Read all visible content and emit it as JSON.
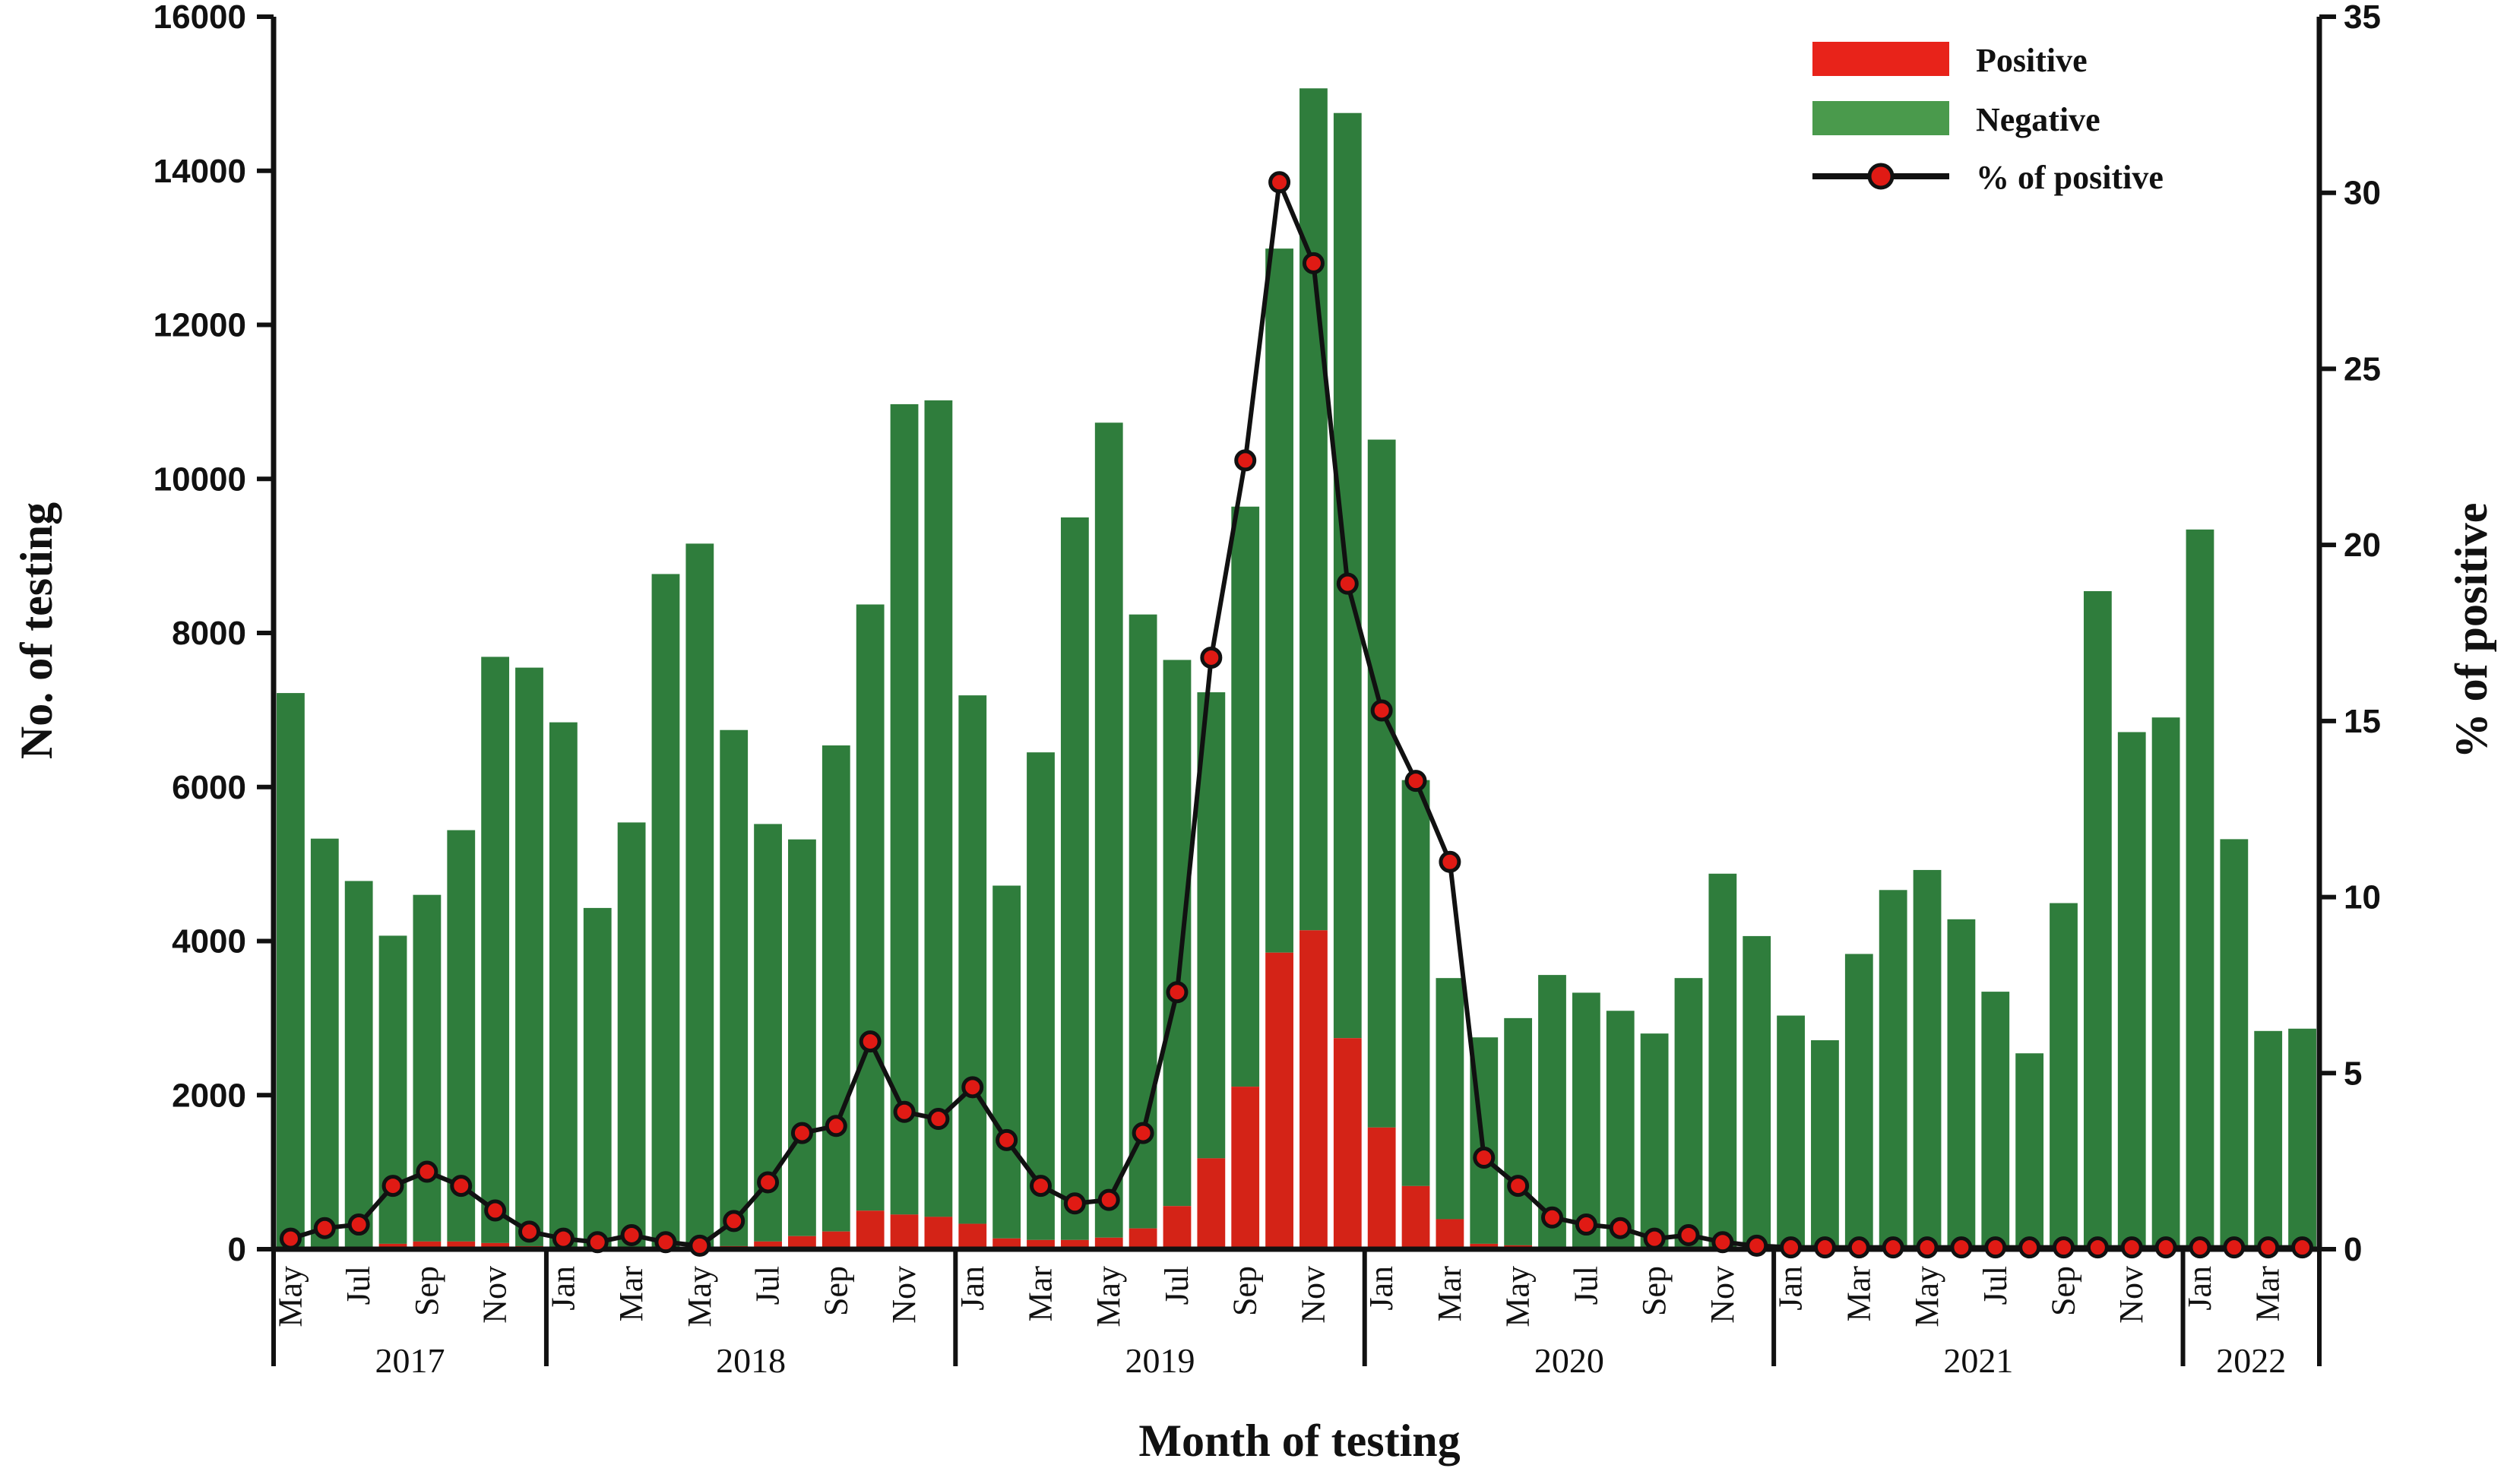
{
  "chart_data": {
    "type": "bar",
    "stacked": true,
    "xlabel": "Month of testing",
    "ylabel": "No. of testing",
    "y2label": "% of positive",
    "ylim": [
      0,
      16000
    ],
    "y2lim": [
      0,
      35
    ],
    "yticks": [
      0,
      2000,
      4000,
      6000,
      8000,
      10000,
      12000,
      14000,
      16000
    ],
    "y2ticks": [
      0,
      5,
      10,
      15,
      20,
      25,
      30,
      35
    ],
    "legend_position": "top-right",
    "categories": [
      "May 2017",
      "Jun 2017",
      "Jul 2017",
      "Aug 2017",
      "Sep 2017",
      "Oct 2017",
      "Nov 2017",
      "Dec 2017",
      "Jan 2018",
      "Feb 2018",
      "Mar 2018",
      "Apr 2018",
      "May 2018",
      "Jun 2018",
      "Jul 2018",
      "Aug 2018",
      "Sep 2018",
      "Oct 2018",
      "Nov 2018",
      "Dec 2018",
      "Jan 2019",
      "Feb 2019",
      "Mar 2019",
      "Apr 2019",
      "May 2019",
      "Jun 2019",
      "Jul 2019",
      "Aug 2019",
      "Sep 2019",
      "Oct 2019",
      "Nov 2019",
      "Dec 2019",
      "Jan 2020",
      "Feb 2020",
      "Mar 2020",
      "Apr 2020",
      "May 2020",
      "Jun 2020",
      "Jul 2020",
      "Aug 2020",
      "Sep 2020",
      "Oct 2020",
      "Nov 2020",
      "Dec 2020",
      "Jan 2021",
      "Feb 2021",
      "Mar 2021",
      "Apr 2021",
      "May 2021",
      "Jun 2021",
      "Jul 2021",
      "Aug 2021",
      "Sep 2021",
      "Oct 2021",
      "Nov 2021",
      "Dec 2021",
      "Jan 2022",
      "Feb 2022",
      "Mar 2022",
      "Apr 2022"
    ],
    "tick_labels": [
      "May",
      "",
      "Jul",
      "",
      "Sep",
      "",
      "Nov",
      "",
      "Jan",
      "",
      "Mar",
      "",
      "May",
      "",
      "Jul",
      "",
      "Sep",
      "",
      "Nov",
      "",
      "Jan",
      "",
      "Mar",
      "",
      "May",
      "",
      "Jul",
      "",
      "Sep",
      "",
      "Nov",
      "",
      "Jan",
      "",
      "Mar",
      "",
      "May",
      "",
      "Jul",
      "",
      "Sep",
      "",
      "Nov",
      "",
      "Jan",
      "",
      "Mar",
      "",
      "May",
      "",
      "Jul",
      "",
      "Sep",
      "",
      "Nov",
      "",
      "Jan",
      "",
      "Mar",
      ""
    ],
    "year_groups": [
      {
        "label": "2017",
        "start": 0,
        "end": 7
      },
      {
        "label": "2018",
        "start": 8,
        "end": 19
      },
      {
        "label": "2019",
        "start": 20,
        "end": 31
      },
      {
        "label": "2020",
        "start": 32,
        "end": 43
      },
      {
        "label": "2021",
        "start": 44,
        "end": 55
      },
      {
        "label": "2022",
        "start": 56,
        "end": 59
      }
    ],
    "series": [
      {
        "name": "Positive",
        "color": "#d42317",
        "values": [
          20,
          30,
          30,
          70,
          100,
          100,
          80,
          40,
          20,
          10,
          20,
          15,
          10,
          40,
          100,
          170,
          230,
          500,
          450,
          420,
          330,
          140,
          120,
          120,
          150,
          270,
          560,
          1180,
          2110,
          3850,
          4140,
          2740,
          1580,
          820,
          390,
          70,
          50,
          30,
          20,
          15,
          10,
          10,
          5,
          5,
          3,
          3,
          3,
          3,
          3,
          3,
          3,
          3,
          3,
          3,
          3,
          3,
          3,
          3,
          3,
          3
        ]
      },
      {
        "name": "Negative",
        "color": "#2f7d3c",
        "values": [
          7200,
          5300,
          4750,
          4000,
          4500,
          5340,
          7610,
          7510,
          6820,
          4420,
          5520,
          8750,
          9150,
          6700,
          5420,
          5150,
          6310,
          7870,
          10520,
          10600,
          6860,
          4580,
          6330,
          9380,
          10580,
          7970,
          7090,
          6050,
          7530,
          9140,
          10930,
          12010,
          8930,
          5270,
          3130,
          2680,
          2950,
          3530,
          3310,
          3080,
          2790,
          3510,
          4870,
          4060,
          3030,
          2710,
          3830,
          4660,
          4920,
          4280,
          3340,
          2540,
          4490,
          8540,
          6710,
          6900,
          9340,
          5320,
          2830,
          2860
        ]
      },
      {
        "name": "% of positive",
        "color": "#111111",
        "marker_color": "#e01a14",
        "values": [
          0.3,
          0.6,
          0.7,
          1.8,
          2.2,
          1.8,
          1.1,
          0.5,
          0.3,
          0.2,
          0.4,
          0.2,
          0.1,
          0.8,
          1.9,
          3.3,
          3.5,
          5.9,
          3.9,
          3.7,
          4.6,
          3.1,
          1.8,
          1.3,
          1.4,
          3.3,
          7.3,
          16.8,
          22.4,
          30.3,
          28.0,
          18.9,
          15.3,
          13.3,
          11.0,
          2.6,
          1.8,
          0.9,
          0.7,
          0.6,
          0.3,
          0.4,
          0.2,
          0.1,
          0.05,
          0.05,
          0.05,
          0.05,
          0.05,
          0.05,
          0.05,
          0.05,
          0.05,
          0.05,
          0.05,
          0.05,
          0.05,
          0.05,
          0.05,
          0.05
        ]
      }
    ]
  }
}
